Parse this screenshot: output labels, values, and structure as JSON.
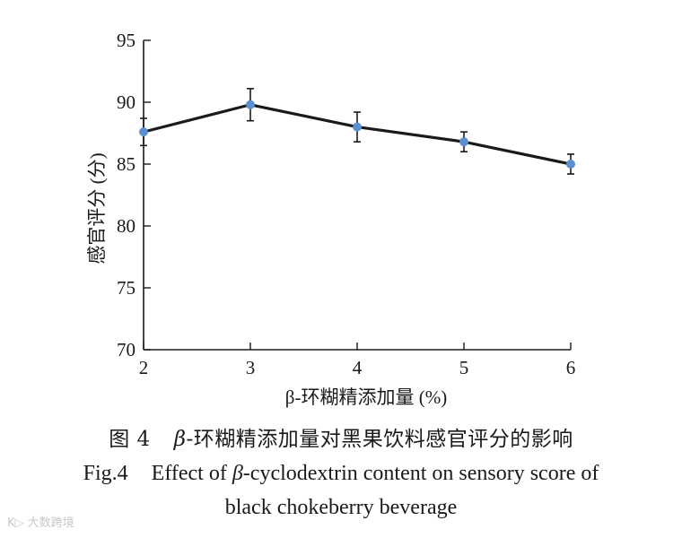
{
  "chart_data": {
    "type": "line",
    "x": [
      2,
      3,
      4,
      5,
      6
    ],
    "series": [
      {
        "name": "感官评分",
        "values": [
          87.6,
          89.8,
          88.0,
          86.8,
          85.0
        ],
        "errors": [
          1.1,
          1.3,
          1.2,
          0.8,
          0.8
        ]
      }
    ],
    "xlabel": "β-环糊精添加量 (%)",
    "ylabel": "感官评分 (分)",
    "xticks": [
      2,
      3,
      4,
      5,
      6
    ],
    "yticks": [
      70,
      75,
      80,
      85,
      90,
      95
    ],
    "xlim": [
      2,
      6
    ],
    "ylim": [
      70,
      95
    ],
    "grid": false,
    "line_color": "#1a1a1a",
    "marker_color": "#5b8fcf"
  },
  "caption": {
    "cn_label": "图 4",
    "cn_beta": "β",
    "cn_text": "-环糊精添加量对黑果饮料感官评分的影响",
    "en_label": "Fig.4",
    "en_prefix": "Effect of ",
    "en_beta": "β",
    "en_line1_rest": "-cyclodextrin content on sensory score of",
    "en_line2": "black chokeberry beverage"
  },
  "watermark": "K▷ 大数跨境"
}
